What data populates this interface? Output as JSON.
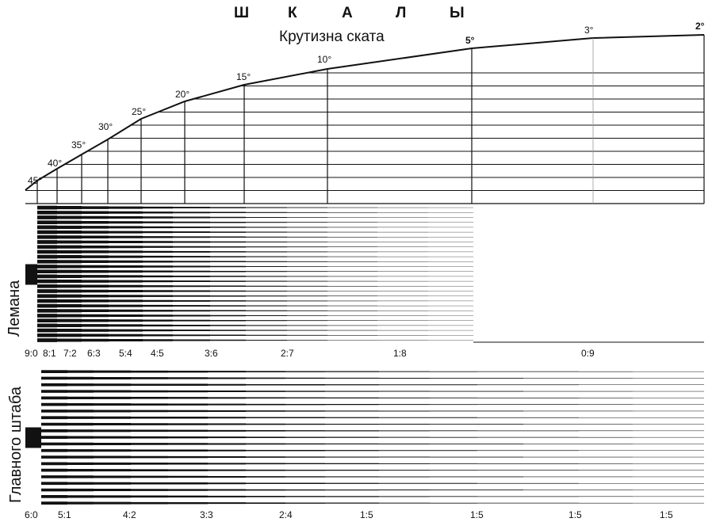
{
  "title_letters": [
    "Ш",
    "К",
    "А",
    "Л",
    "Ы"
  ],
  "subtitle": "Крутизна ската",
  "slope_degrees": [
    "45°",
    "40°",
    "35°",
    "30°",
    "25°",
    "20°",
    "15°",
    "10°",
    "5°",
    "3°",
    "2°"
  ],
  "lehmann": {
    "label": "Лемана",
    "ratios": [
      "9:0",
      "8:1",
      "7:2",
      "6:3",
      "5:4",
      "4:5",
      "3:6",
      "2:7",
      "1:8",
      "0:9"
    ]
  },
  "general_staff": {
    "label": "Главного штаба",
    "ratios": [
      "6:0",
      "5:1",
      "4:2",
      "3:3",
      "2:4",
      "1:5",
      "1:5",
      "1:5",
      "1:5"
    ]
  },
  "ink_color": "#111111"
}
